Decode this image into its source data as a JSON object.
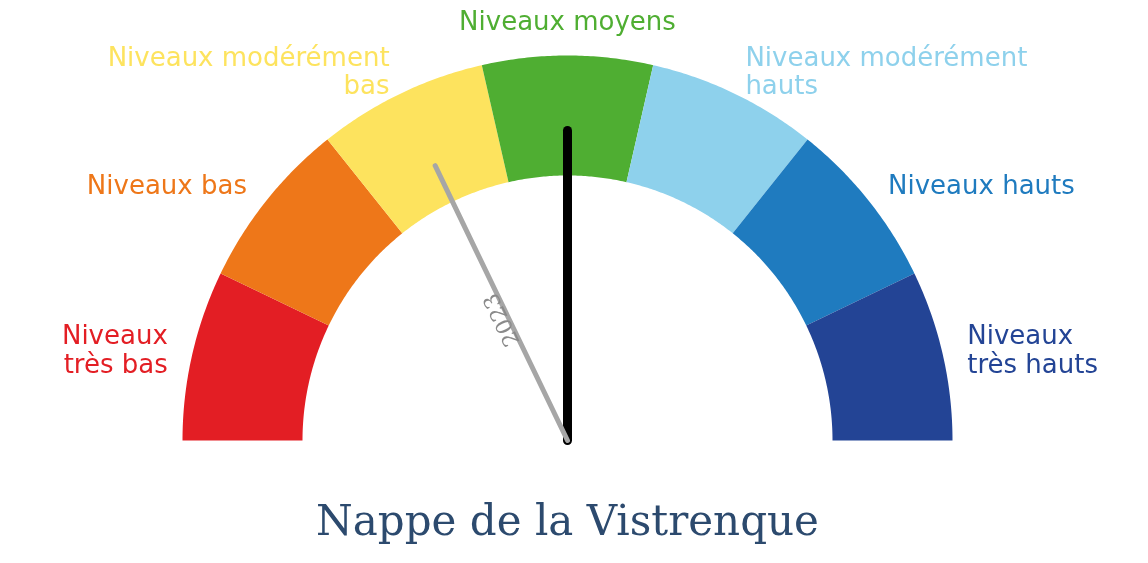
{
  "chart_data": {
    "type": "donut",
    "title": "Nappe de la Vistrenque",
    "categories": [
      "Niveaux\ntrès bas",
      "Niveaux bas",
      "Niveaux modérément\nbas",
      "Niveaux moyens",
      "Niveaux modérément\nhauts",
      "Niveaux hauts",
      "Niveaux\ntrès hauts"
    ],
    "values": [
      14.2857,
      14.2857,
      14.2857,
      14.2857,
      14.2857,
      14.2857,
      14.2857
    ],
    "colors": [
      "#e31e24",
      "#ee7719",
      "#fde35e",
      "#4fae32",
      "#8ed1ec",
      "#1f7bbf",
      "#234495"
    ],
    "needle": "Niveaux moyens",
    "annotations": [
      {
        "text": "2023",
        "x": "Niveaux modérément\nbas"
      }
    ]
  }
}
